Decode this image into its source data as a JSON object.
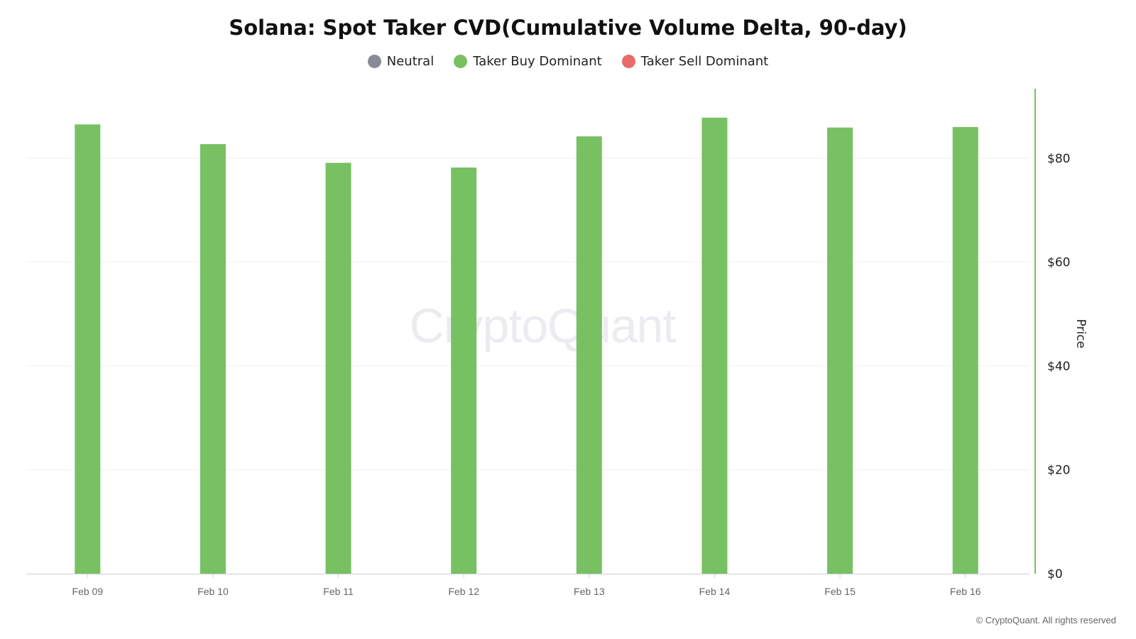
{
  "chart_data": {
    "type": "bar",
    "title": "Solana: Spot Taker CVD(Cumulative Volume Delta, 90-day)",
    "legend": [
      {
        "label": "Neutral",
        "color": "#8a8a96"
      },
      {
        "label": "Taker Buy Dominant",
        "color": "#77c163"
      },
      {
        "label": "Taker Sell Dominant",
        "color": "#e86a6a"
      }
    ],
    "legend_position": "top-center",
    "categories": [
      "Feb 09",
      "Feb 10",
      "Feb 11",
      "Feb 12",
      "Feb 13",
      "Feb 14",
      "Feb 15",
      "Feb 16"
    ],
    "series": [
      {
        "name": "Taker Buy Dominant",
        "values": [
          86.5,
          82.7,
          79.1,
          78.2,
          84.2,
          87.8,
          85.9,
          86.0
        ],
        "color": "#77c163"
      }
    ],
    "ylabel": "Price",
    "y_axis_side": "right",
    "ylim": [
      0,
      92
    ],
    "yticks": [
      0,
      20,
      40,
      60,
      80
    ],
    "ytick_labels": [
      "$0",
      "$20",
      "$40",
      "$60",
      "$80"
    ],
    "grid": true,
    "watermark": "CryptoQuant",
    "footer": "© CryptoQuant. All rights reserved"
  }
}
